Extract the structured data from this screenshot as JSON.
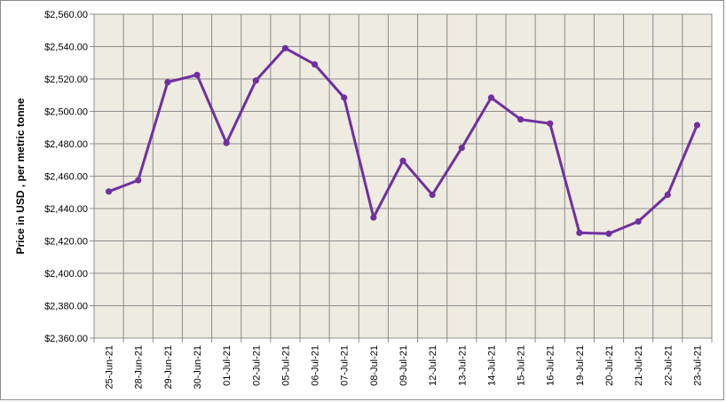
{
  "chart_data": {
    "type": "line",
    "title": "",
    "xlabel": "",
    "ylabel": "Price in USD , per metric tonne",
    "ylim": [
      2360,
      2560
    ],
    "y_tick_step": 20,
    "y_tick_labels": [
      "$2,360.00",
      "$2,380.00",
      "$2,400.00",
      "$2,420.00",
      "$2,440.00",
      "$2,460.00",
      "$2,480.00",
      "$2,500.00",
      "$2,520.00",
      "$2,540.00",
      "$2,560.00"
    ],
    "grid": true,
    "legend": "none",
    "categories": [
      "25-Jun-21",
      "28-Jun-21",
      "29-Jun-21",
      "30-Jun-21",
      "01-Jul-21",
      "02-Jul-21",
      "05-Jul-21",
      "06-Jul-21",
      "07-Jul-21",
      "08-Jul-21",
      "09-Jul-21",
      "12-Jul-21",
      "13-Jul-21",
      "14-Jul-21",
      "15-Jul-21",
      "16-Jul-21",
      "19-Jul-21",
      "20-Jul-21",
      "21-Jul-21",
      "22-Jul-21",
      "23-Jul-21"
    ],
    "series": [
      {
        "values": [
          2450.5,
          2457.5,
          2518.0,
          2522.5,
          2480.5,
          2519.0,
          2539.0,
          2529.0,
          2508.5,
          2434.5,
          2469.5,
          2448.5,
          2477.5,
          2508.5,
          2495.0,
          2492.5,
          2425.0,
          2424.5,
          2432.0,
          2448.5,
          2491.5
        ]
      }
    ],
    "colors": {
      "plot_background": "#EEEBE1",
      "gridline": "#8C8C8C",
      "line": "#7030A0",
      "marker": "#7030A0"
    }
  }
}
